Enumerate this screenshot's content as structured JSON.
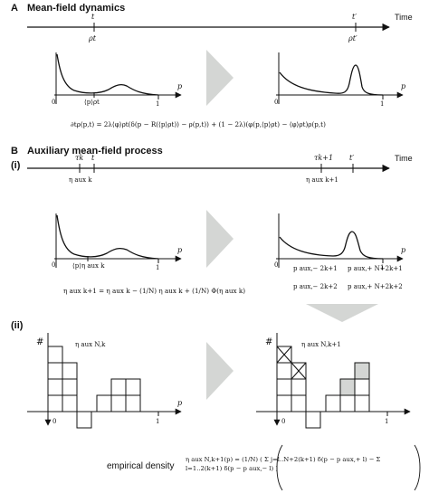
{
  "panel_a": {
    "letter": "A",
    "title": "Mean-field dynamics",
    "time_label": "Time",
    "t_label": "t",
    "t_prime_label": "t′",
    "rho_t": "ρt",
    "rho_t_prime": "ρt′",
    "mean_p": "⟨p⟩ρt",
    "axis_p": "p",
    "tick0": "0",
    "tick1": "1",
    "equation": "∂tρ(p,t) = 2λ⟨φ⟩ρt(δ(p − R(⟨p⟩ρt)) − ρ(p,t)) + (1 − 2λ)(φ(p,⟨p⟩ρt) − ⟨φ⟩ρt)ρ(p,t)"
  },
  "panel_b": {
    "letter": "B",
    "title": "Auxiliary mean-field process",
    "sub_i": "(i)",
    "sub_ii": "(ii)",
    "time_label": "Time",
    "tau_k": "τk",
    "t_label": "t",
    "tau_k1": "τk+1",
    "t_prime_label": "t′",
    "eta_aux_k": "η aux k",
    "eta_aux_k1": "η aux k+1",
    "mean_p": "⟨p⟩η aux k",
    "axis_p": "p",
    "tick0": "0",
    "tick1": "1",
    "p_aux_minus_1": "p aux,− 2k+1",
    "p_aux_plus_1": "p aux,+ N+2k+1",
    "p_aux_minus_2": "p aux,− 2k+2",
    "p_aux_plus_2": "p aux,+ N+2k+2",
    "update_eq": "η aux k+1 = η aux k − (1/N) η aux k + (1/N) Φ(η aux k)",
    "hist_y": "#",
    "eta_N_k": "η aux N,k",
    "eta_N_k1": "η aux N,k+1",
    "empirical_label": "empirical density",
    "empirical_eq": "η aux N,k+1(p) = (1/N) ( Σ j=l..N+2(k+1) δ(p − p aux,+ l) − Σ l=1..2(k+1) δ(p − p aux,− l) )"
  }
}
